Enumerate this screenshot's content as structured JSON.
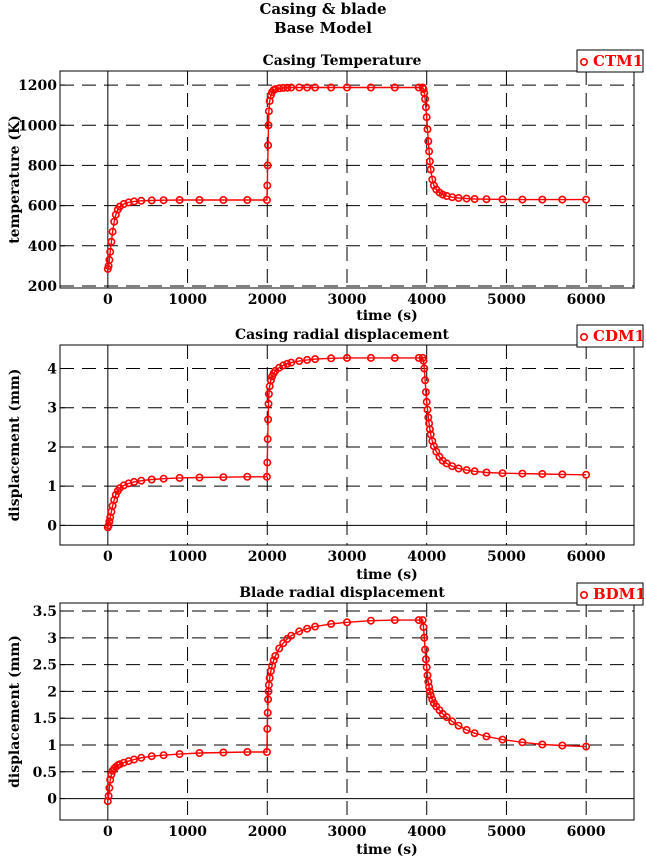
{
  "figure": {
    "title_line1": "Casing & blade",
    "title_line2": "Base Model"
  },
  "colors": {
    "series": "#ff0000",
    "axes": "#000000",
    "grid": "#000000"
  },
  "chart_data": [
    {
      "type": "line",
      "title": "Casing Temperature",
      "xlabel": "time (s)",
      "ylabel": "temperature (K)",
      "xlim": [
        -600,
        6600
      ],
      "ylim": [
        190,
        1270
      ],
      "xticks": [
        0,
        1000,
        2000,
        3000,
        4000,
        5000,
        6000
      ],
      "yticks": [
        200,
        400,
        600,
        800,
        1000,
        1200
      ],
      "ytick_labels": [
        "200",
        "400",
        "600",
        "800",
        "1000",
        "1200"
      ],
      "grid": true,
      "legend": "top-right",
      "series": [
        {
          "name": "CTM1",
          "marker": "circle",
          "x": [
            0,
            10,
            20,
            30,
            45,
            60,
            80,
            100,
            125,
            150,
            200,
            260,
            330,
            420,
            550,
            700,
            900,
            1150,
            1450,
            1750,
            1995,
            2000,
            2005,
            2010,
            2015,
            2020,
            2030,
            2045,
            2060,
            2080,
            2100,
            2150,
            2200,
            2250,
            2300,
            2400,
            2500,
            2600,
            2800,
            3000,
            3300,
            3600,
            3900,
            3950,
            3960,
            3970,
            3980,
            3990,
            4000,
            4010,
            4020,
            4030,
            4040,
            4050,
            4070,
            4090,
            4120,
            4160,
            4200,
            4250,
            4320,
            4400,
            4500,
            4600,
            4750,
            4950,
            5200,
            5450,
            5700,
            5999
          ],
          "values": [
            285,
            300,
            330,
            370,
            420,
            470,
            520,
            555,
            580,
            595,
            608,
            616,
            621,
            624,
            626,
            627,
            628,
            628,
            628,
            628,
            628,
            700,
            800,
            900,
            1000,
            1070,
            1120,
            1150,
            1165,
            1175,
            1180,
            1184,
            1186,
            1187,
            1188,
            1188,
            1188,
            1188,
            1188,
            1188,
            1188,
            1188,
            1188,
            1188,
            1180,
            1160,
            1130,
            1090,
            1040,
            980,
            920,
            870,
            820,
            780,
            730,
            700,
            680,
            665,
            655,
            648,
            642,
            638,
            635,
            633,
            632,
            631,
            630,
            630,
            630,
            630
          ]
        }
      ]
    },
    {
      "type": "line",
      "title": "Casing radial displacement",
      "xlabel": "time (s)",
      "ylabel": "displacement (mm)",
      "xlim": [
        -600,
        6600
      ],
      "ylim": [
        -0.5,
        4.6
      ],
      "xticks": [
        0,
        1000,
        2000,
        3000,
        4000,
        5000,
        6000
      ],
      "yticks": [
        0,
        1,
        2,
        3,
        4
      ],
      "ytick_labels": [
        "0",
        "1",
        "2",
        "3",
        "4"
      ],
      "grid": true,
      "legend": "top-right",
      "series": [
        {
          "name": "CDM1",
          "marker": "circle",
          "x": [
            0,
            10,
            20,
            30,
            45,
            60,
            80,
            100,
            125,
            150,
            200,
            260,
            330,
            420,
            550,
            700,
            900,
            1150,
            1450,
            1750,
            1995,
            2000,
            2005,
            2010,
            2015,
            2020,
            2030,
            2045,
            2060,
            2080,
            2100,
            2150,
            2200,
            2250,
            2300,
            2400,
            2500,
            2600,
            2800,
            3000,
            3300,
            3600,
            3900,
            3950,
            3960,
            3970,
            3980,
            3990,
            4000,
            4010,
            4020,
            4030,
            4040,
            4050,
            4070,
            4090,
            4120,
            4160,
            4200,
            4250,
            4320,
            4400,
            4500,
            4600,
            4750,
            4950,
            5200,
            5450,
            5700,
            5999
          ],
          "values": [
            -0.05,
            0.0,
            0.1,
            0.2,
            0.35,
            0.5,
            0.65,
            0.78,
            0.88,
            0.95,
            1.02,
            1.07,
            1.11,
            1.14,
            1.17,
            1.19,
            1.21,
            1.22,
            1.23,
            1.24,
            1.24,
            1.6,
            2.2,
            2.7,
            3.1,
            3.35,
            3.55,
            3.7,
            3.8,
            3.88,
            3.94,
            4.02,
            4.08,
            4.12,
            4.15,
            4.19,
            4.22,
            4.24,
            4.26,
            4.27,
            4.27,
            4.27,
            4.27,
            4.27,
            4.2,
            4.0,
            3.7,
            3.4,
            3.15,
            2.95,
            2.75,
            2.6,
            2.45,
            2.32,
            2.15,
            2.02,
            1.88,
            1.75,
            1.65,
            1.58,
            1.51,
            1.45,
            1.41,
            1.38,
            1.35,
            1.33,
            1.32,
            1.31,
            1.3,
            1.29
          ]
        }
      ]
    },
    {
      "type": "line",
      "title": "Blade radial displacement",
      "xlabel": "time (s)",
      "ylabel": "displacement (mm)",
      "xlim": [
        -600,
        6600
      ],
      "ylim": [
        -0.4,
        3.65
      ],
      "xticks": [
        0,
        1000,
        2000,
        3000,
        4000,
        5000,
        6000
      ],
      "yticks": [
        0,
        0.5,
        1,
        1.5,
        2,
        2.5,
        3,
        3.5
      ],
      "ytick_labels": [
        "0",
        "0.5",
        "1",
        "1.5",
        "2",
        "2.5",
        "3",
        "3.5"
      ],
      "grid": true,
      "legend": "top-right",
      "series": [
        {
          "name": "BDM1",
          "marker": "circle",
          "x": [
            0,
            10,
            20,
            30,
            45,
            60,
            80,
            100,
            125,
            150,
            200,
            260,
            330,
            420,
            550,
            700,
            900,
            1150,
            1450,
            1750,
            1995,
            2000,
            2005,
            2010,
            2015,
            2020,
            2030,
            2045,
            2060,
            2080,
            2100,
            2150,
            2200,
            2250,
            2300,
            2400,
            2500,
            2600,
            2800,
            3000,
            3300,
            3600,
            3900,
            3950,
            3960,
            3970,
            3980,
            3990,
            4000,
            4010,
            4020,
            4030,
            4040,
            4050,
            4070,
            4090,
            4120,
            4160,
            4200,
            4250,
            4320,
            4400,
            4500,
            4600,
            4750,
            4950,
            5200,
            5450,
            5700,
            5999
          ],
          "values": [
            -0.05,
            0.05,
            0.2,
            0.35,
            0.45,
            0.52,
            0.56,
            0.59,
            0.62,
            0.64,
            0.67,
            0.7,
            0.73,
            0.76,
            0.79,
            0.81,
            0.83,
            0.85,
            0.86,
            0.87,
            0.87,
            1.3,
            1.6,
            1.85,
            2.0,
            2.12,
            2.25,
            2.38,
            2.48,
            2.58,
            2.66,
            2.8,
            2.9,
            2.98,
            3.04,
            3.12,
            3.17,
            3.21,
            3.26,
            3.29,
            3.32,
            3.33,
            3.33,
            3.33,
            3.2,
            3.0,
            2.78,
            2.6,
            2.45,
            2.3,
            2.18,
            2.08,
            2.0,
            1.93,
            1.85,
            1.78,
            1.72,
            1.65,
            1.58,
            1.52,
            1.44,
            1.36,
            1.28,
            1.22,
            1.16,
            1.1,
            1.05,
            1.01,
            0.99,
            0.97
          ]
        }
      ]
    }
  ]
}
